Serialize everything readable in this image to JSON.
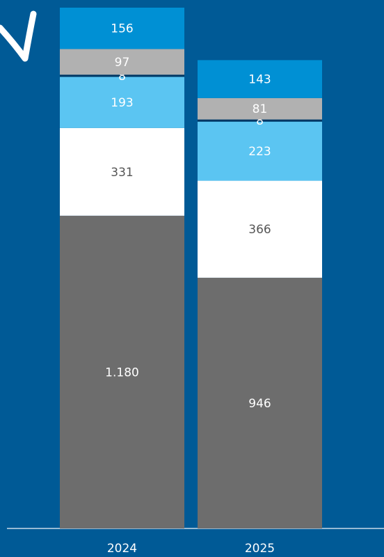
{
  "chart_data": {
    "type": "stacked_bar",
    "categories": [
      "2024",
      "2025"
    ],
    "series": [
      {
        "color": "#6d6d6d",
        "values": [
          1180,
          946
        ],
        "value_labels": [
          "1.180",
          "946"
        ]
      },
      {
        "color": "#ffffff",
        "values": [
          331,
          366
        ]
      },
      {
        "color": "#5bc5f2",
        "values": [
          193,
          223
        ]
      },
      {
        "color": "#003764",
        "values": [
          8,
          8
        ]
      },
      {
        "color": "#b1b1b1",
        "values": [
          97,
          81
        ]
      },
      {
        "color": "#0090d4",
        "values": [
          156,
          143
        ]
      }
    ]
  }
}
